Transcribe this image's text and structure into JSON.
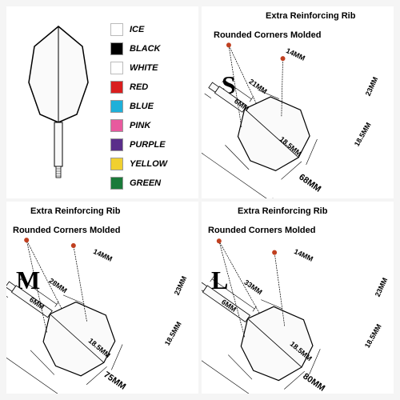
{
  "colors": [
    {
      "name": "ICE",
      "hex": "#ffffff"
    },
    {
      "name": "BLACK",
      "hex": "#000000"
    },
    {
      "name": "WHITE",
      "hex": "#ffffff"
    },
    {
      "name": "RED",
      "hex": "#d91e1e"
    },
    {
      "name": "BLUE",
      "hex": "#1eb0d9"
    },
    {
      "name": "PINK",
      "hex": "#e85a9e"
    },
    {
      "name": "PURPLE",
      "hex": "#5a2e8a"
    },
    {
      "name": "YELLOW",
      "hex": "#f0d030"
    },
    {
      "name": "GREEN",
      "hex": "#1a7a3a"
    }
  ],
  "labels": {
    "rib": "Extra Reinforcing Rib",
    "corners": "Rounded Corners Molded"
  },
  "callout_color": "#c04020",
  "stroke_color": "#000000",
  "sizes": {
    "S": {
      "letter": "S",
      "shaft_upper": "21MM",
      "shaft_lower": "6MM",
      "flight_top": "14MM",
      "flight_bottom": "18.5MM",
      "flight_right_upper": "23MM",
      "flight_right_lower": "18.5MM",
      "total": "68MM"
    },
    "M": {
      "letter": "M",
      "shaft_upper": "28MM",
      "shaft_lower": "6MM",
      "flight_top": "14MM",
      "flight_bottom": "18.5MM",
      "flight_right_upper": "23MM",
      "flight_right_lower": "18.5MM",
      "total": "75MM"
    },
    "L": {
      "letter": "L",
      "shaft_upper": "33MM",
      "shaft_lower": "6MM",
      "flight_top": "14MM",
      "flight_bottom": "18.5MM",
      "flight_right_upper": "23MM",
      "flight_right_lower": "18.5MM",
      "total": "80MM"
    }
  },
  "styling": {
    "background": "#f5f5f5",
    "panel_bg": "#ffffff",
    "font_family": "Arial",
    "label_fontsize": 11,
    "dim_fontsize": 9,
    "size_letter_fontsize": 32
  }
}
